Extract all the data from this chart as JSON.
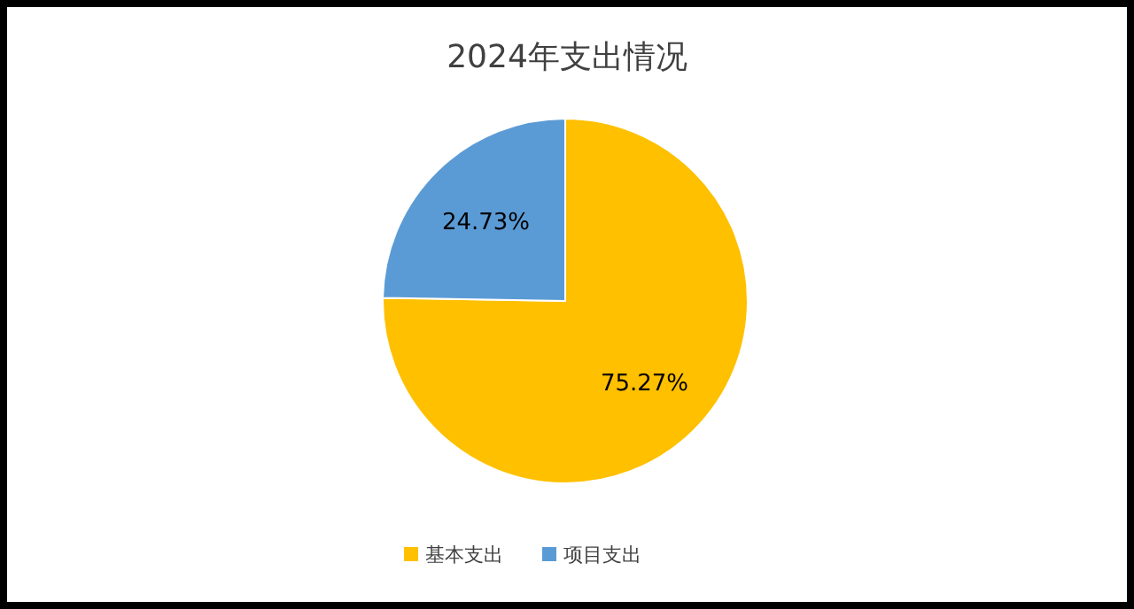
{
  "chart_data": {
    "type": "pie",
    "title": "2024年支出情况",
    "categories": [
      "基本支出",
      "项目支出"
    ],
    "values": [
      75.27,
      24.73
    ],
    "colors": [
      "#ffc000",
      "#5b9bd5"
    ],
    "value_labels": [
      "75.27%",
      "24.73%"
    ],
    "legend": "bottom"
  }
}
